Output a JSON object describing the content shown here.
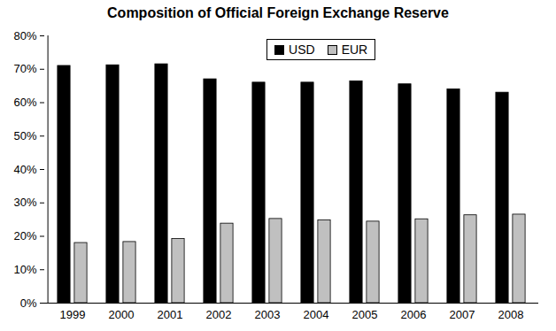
{
  "chart_data": {
    "type": "bar",
    "title": "Composition of Official Foreign Exchange Reserve",
    "categories": [
      "1999",
      "2000",
      "2001",
      "2002",
      "2003",
      "2004",
      "2005",
      "2006",
      "2007",
      "2008"
    ],
    "series": [
      {
        "name": "USD",
        "color": "#000000",
        "values": [
          71,
          71.2,
          71.5,
          67,
          66,
          66,
          66.4,
          65.5,
          64,
          63
        ]
      },
      {
        "name": "EUR",
        "color": "#c0c0c0",
        "values": [
          18,
          18.3,
          19.2,
          23.8,
          25.2,
          24.8,
          24.4,
          25.1,
          26.3,
          26.5
        ]
      }
    ],
    "ylim": [
      0,
      80
    ],
    "yticks": [
      {
        "value": 0,
        "label": "0%"
      },
      {
        "value": 10,
        "label": "10%"
      },
      {
        "value": 20,
        "label": "20%"
      },
      {
        "value": 30,
        "label": "30%"
      },
      {
        "value": 40,
        "label": "40%"
      },
      {
        "value": 50,
        "label": "50%"
      },
      {
        "value": 60,
        "label": "60%"
      },
      {
        "value": 70,
        "label": "70%"
      },
      {
        "value": 80,
        "label": "80%"
      }
    ],
    "grid": false,
    "legend": "top"
  }
}
